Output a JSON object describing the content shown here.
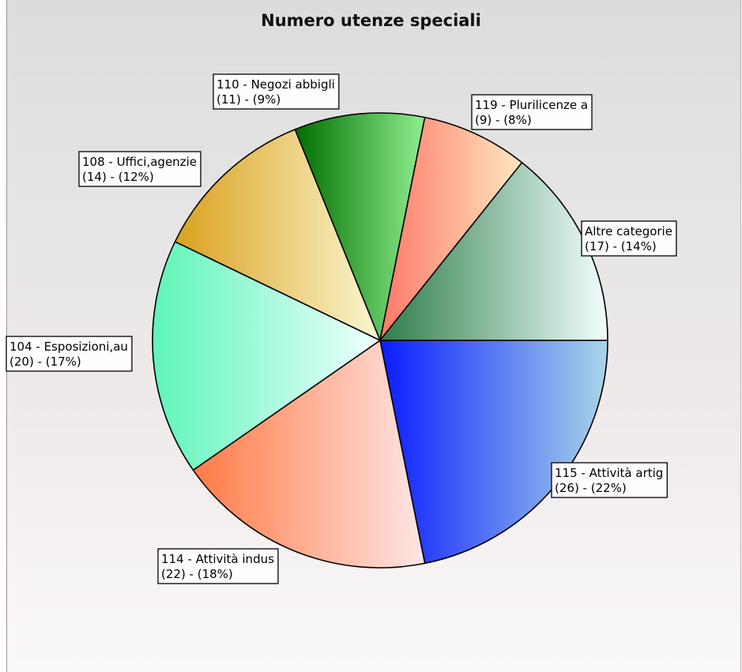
{
  "chart_data": {
    "type": "pie",
    "title": "Numero utenze speciali",
    "slices": [
      {
        "label": "115 - Attività artig",
        "value": 26,
        "percent": "22%",
        "text_line1": "115 - Attività artig",
        "text_line2": "(26) - (22%)",
        "color_start": "#0a1cff",
        "color_end": "#a9d6e8"
      },
      {
        "label": "114 - Attività indus",
        "value": 22,
        "percent": "18%",
        "text_line1": "114 - Attività indus",
        "text_line2": "(22) - (18%)",
        "color_start": "#ff7a45",
        "color_end": "#ffe6e6"
      },
      {
        "label": "104 - Esposizioni,au",
        "value": 20,
        "percent": "17%",
        "text_line1": "104 - Esposizioni,au",
        "text_line2": "(20) - (17%)",
        "color_start": "#5ff5b8",
        "color_end": "#f0ffff"
      },
      {
        "label": "108 - Uffici,agenzie",
        "value": 14,
        "percent": "12%",
        "text_line1": "108 - Uffici,agenzie",
        "text_line2": "(14) - (12%)",
        "color_start": "#d9a11e",
        "color_end": "#fbf7d2"
      },
      {
        "label": "110 - Negozi abbigli",
        "value": 11,
        "percent": "9%",
        "text_line1": "110 - Negozi abbigli",
        "text_line2": "(11) - (9%)",
        "color_start": "#006e00",
        "color_end": "#90ee90"
      },
      {
        "label": "119 - Plurilicenze a",
        "value": 9,
        "percent": "8%",
        "text_line1": "119 - Plurilicenze a",
        "text_line2": "(9) - (8%)",
        "color_start": "#ff7868",
        "color_end": "#ffe7c0"
      },
      {
        "label": "Altre categorie",
        "value": 17,
        "percent": "14%",
        "text_line1": "Altre categorie",
        "text_line2": "(17) - (14%)",
        "color_start": "#2e7d4a",
        "color_end": "#f2ffff"
      }
    ],
    "start_angle_deg": 0,
    "direction": "clockwise",
    "legend": "none"
  }
}
